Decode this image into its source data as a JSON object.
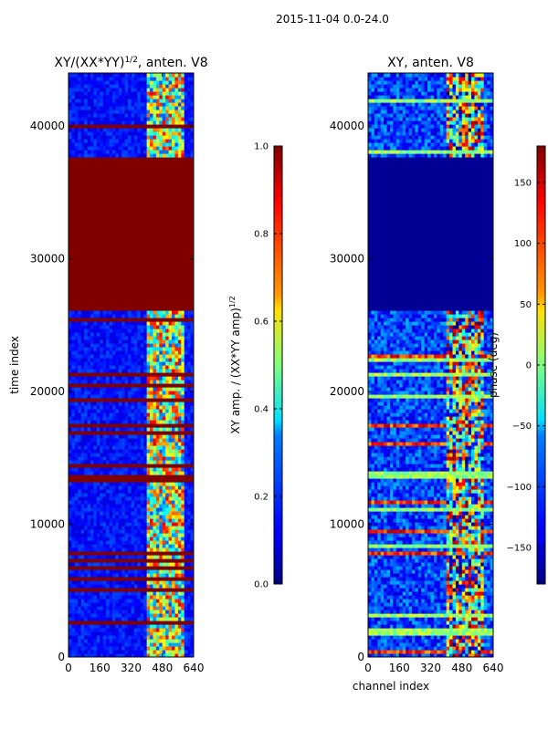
{
  "figure": {
    "suptitle": "2015-11-04 0.0-24.0"
  },
  "chart_data": [
    {
      "type": "heatmap",
      "title_main": "XY/(XX*YY)",
      "title_exp": "1/2",
      "title_suffix": ", anten. V8",
      "xlabel": "",
      "ylabel": "time index",
      "xlim": [
        0,
        640
      ],
      "ylim": [
        0,
        44000
      ],
      "x_ticks": [
        0,
        160,
        320,
        480,
        640
      ],
      "y_ticks": [
        0,
        10000,
        20000,
        30000,
        40000
      ],
      "x_tick_labels": [
        "0",
        "160",
        "320",
        "480",
        "640"
      ],
      "y_tick_labels": [
        "0",
        "10000",
        "20000",
        "30000",
        "40000"
      ],
      "colormap": "jet",
      "colorbar": {
        "label_main": "XY amp. / (XX*YY amp)",
        "label_exp": "1/2",
        "range": [
          0.0,
          1.0
        ],
        "ticks": [
          0.0,
          0.2,
          0.4,
          0.6,
          0.8,
          1.0
        ],
        "tick_labels": [
          "0.0",
          "0.2",
          "0.4",
          "0.6",
          "0.8",
          "1.0"
        ]
      },
      "flagged_rows_value": 1.0,
      "flagged_block_time_range": [
        26000,
        37600
      ],
      "active_channel_range": [
        400,
        600
      ]
    },
    {
      "type": "heatmap",
      "title_main": "XY, anten. V8",
      "xlabel": "channel index",
      "ylabel": "",
      "xlim": [
        0,
        640
      ],
      "ylim": [
        0,
        44000
      ],
      "x_ticks": [
        0,
        160,
        320,
        480,
        640
      ],
      "y_ticks": [
        0,
        10000,
        20000,
        30000,
        40000
      ],
      "x_tick_labels": [
        "0",
        "160",
        "320",
        "480",
        "640"
      ],
      "y_tick_labels": [
        "0",
        "10000",
        "20000",
        "30000",
        "40000"
      ],
      "colormap": "jet",
      "colorbar": {
        "label": "phase (deg)",
        "range": [
          -180,
          180
        ],
        "ticks": [
          -150,
          -100,
          -50,
          0,
          50,
          100,
          150
        ],
        "tick_labels": [
          "−150",
          "−100",
          "−50",
          "0",
          "50",
          "100",
          "150"
        ]
      },
      "flagged_block_time_range": [
        26000,
        37600
      ],
      "active_channel_range": [
        400,
        600
      ]
    }
  ]
}
